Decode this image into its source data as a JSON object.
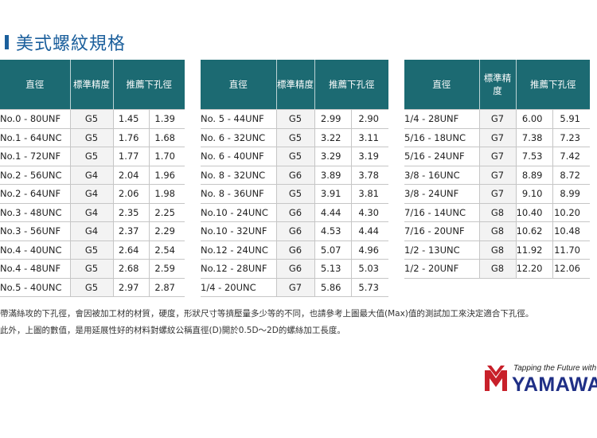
{
  "title": "美式螺紋規格",
  "headers": {
    "size": "直徑",
    "class": "標準精度",
    "drill": "推薦下孔徑"
  },
  "tables": [
    {
      "rows": [
        {
          "size": "No.0 - 80UNF",
          "class": "G5",
          "min": "1.45",
          "max": "1.39"
        },
        {
          "size": "No.1 - 64UNC",
          "class": "G5",
          "min": "1.76",
          "max": "1.68"
        },
        {
          "size": "No.1 - 72UNF",
          "class": "G5",
          "min": "1.77",
          "max": "1.70"
        },
        {
          "size": "No.2 - 56UNC",
          "class": "G4",
          "min": "2.04",
          "max": "1.96"
        },
        {
          "size": "No.2 - 64UNF",
          "class": "G4",
          "min": "2.06",
          "max": "1.98"
        },
        {
          "size": "No.3 - 48UNC",
          "class": "G4",
          "min": "2.35",
          "max": "2.25"
        },
        {
          "size": "No.3 - 56UNF",
          "class": "G4",
          "min": "2.37",
          "max": "2.29"
        },
        {
          "size": "No.4 - 40UNC",
          "class": "G5",
          "min": "2.64",
          "max": "2.54"
        },
        {
          "size": "No.4 - 48UNF",
          "class": "G5",
          "min": "2.68",
          "max": "2.59"
        },
        {
          "size": "No.5 - 40UNC",
          "class": "G5",
          "min": "2.97",
          "max": "2.87"
        }
      ]
    },
    {
      "rows": [
        {
          "size": "No. 5 - 44UNF",
          "class": "G5",
          "min": "2.99",
          "max": "2.90"
        },
        {
          "size": "No. 6 - 32UNC",
          "class": "G5",
          "min": "3.22",
          "max": "3.11"
        },
        {
          "size": "No. 6 - 40UNF",
          "class": "G5",
          "min": "3.29",
          "max": "3.19"
        },
        {
          "size": "No. 8 - 32UNC",
          "class": "G6",
          "min": "3.89",
          "max": "3.78"
        },
        {
          "size": "No. 8 - 36UNF",
          "class": "G5",
          "min": "3.91",
          "max": "3.81"
        },
        {
          "size": "No.10 - 24UNC",
          "class": "G6",
          "min": "4.44",
          "max": "4.30"
        },
        {
          "size": "No.10 - 32UNF",
          "class": "G6",
          "min": "4.53",
          "max": "4.44"
        },
        {
          "size": "No.12 - 24UNC",
          "class": "G6",
          "min": "5.07",
          "max": "4.96"
        },
        {
          "size": "No.12 - 28UNF",
          "class": "G6",
          "min": "5.13",
          "max": "5.03"
        },
        {
          "size": "1/4 - 20UNC",
          "class": "G7",
          "min": "5.86",
          "max": "5.73"
        }
      ]
    },
    {
      "rows": [
        {
          "size": "1/4 - 28UNF",
          "class": "G7",
          "min": "6.00",
          "max": "5.91"
        },
        {
          "size": "5/16 - 18UNC",
          "class": "G7",
          "min": "7.38",
          "max": "7.23"
        },
        {
          "size": "5/16 - 24UNF",
          "class": "G7",
          "min": "7.53",
          "max": "7.42"
        },
        {
          "size": "3/8 - 16UNC",
          "class": "G7",
          "min": "8.89",
          "max": "8.72"
        },
        {
          "size": "3/8 - 24UNF",
          "class": "G7",
          "min": "9.10",
          "max": "8.99"
        },
        {
          "size": "7/16 - 14UNC",
          "class": "G8",
          "min": "10.40",
          "max": "10.20"
        },
        {
          "size": "7/16 - 20UNF",
          "class": "G8",
          "min": "10.62",
          "max": "10.48"
        },
        {
          "size": "1/2 - 13UNC",
          "class": "G8",
          "min": "11.92",
          "max": "11.70"
        },
        {
          "size": "1/2 - 20UNF",
          "class": "G8",
          "min": "12.20",
          "max": "12.06"
        }
      ]
    }
  ],
  "notes": [
    "帶滿絲攻的下孔徑，會因被加工材的材質，硬度，形狀尺寸等擠壓量多少等的不同，也請參考上圖最大值(Max)值的測試加工來決定適合下孔徑。",
    "此外，上圖的數值，是用延展性好的材料對螺紋公稱直徑(D)開於0.5D～2D的螺絲加工長度。"
  ],
  "logo": {
    "tagline": "Tapping the Future with",
    "name": "YAMAWA",
    "brand_color": "#1f2f86",
    "mark_color": "#c8202a"
  },
  "colors": {
    "header_bg": "#1c6a72",
    "title": "#1b5f9c"
  }
}
